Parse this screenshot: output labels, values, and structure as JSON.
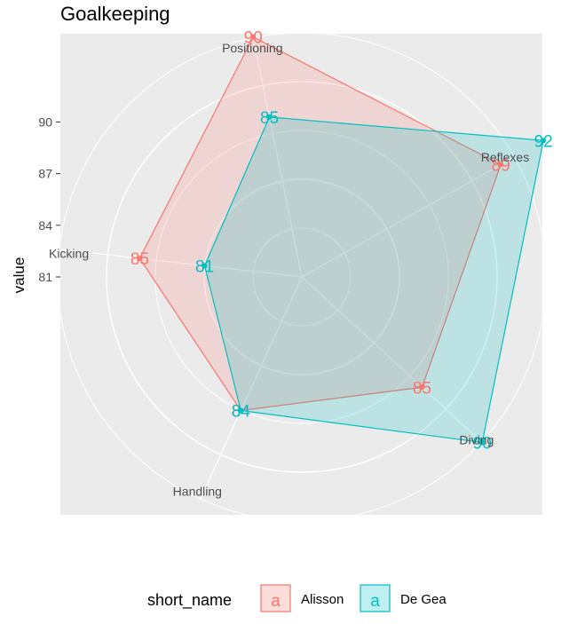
{
  "chart_data": {
    "type": "radar",
    "title": "Goalkeeping",
    "ylabel": "value",
    "categories": [
      "Positioning",
      "Reflexes",
      "Diving",
      "Handling",
      "Kicking"
    ],
    "y_ticks": [
      81,
      84,
      87,
      90
    ],
    "series": [
      {
        "name": "Alisson",
        "values": [
          90,
          89,
          85,
          84,
          85
        ],
        "color": "#F8766D"
      },
      {
        "name": "De Gea",
        "values": [
          85,
          92,
          90,
          84,
          81
        ],
        "color": "#00BFC4"
      }
    ],
    "legend": {
      "title": "short_name",
      "position": "bottom",
      "glyph": "a"
    },
    "grid": true,
    "panel_background": "#EBEBEB"
  }
}
